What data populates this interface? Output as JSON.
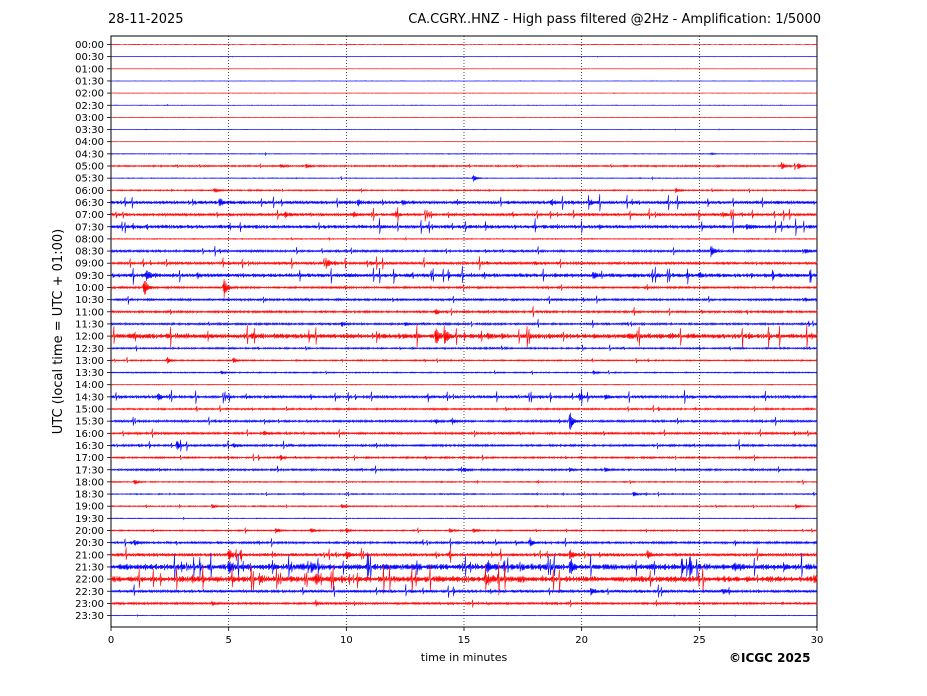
{
  "header": {
    "date": "28-11-2025",
    "title": "CA.CGRY..HNZ - High pass filtered @2Hz - Amplification: 1/5000"
  },
  "copyright": "©ICGC 2025",
  "colors": {
    "even_trace": "#ff0000",
    "odd_trace": "#0000ff",
    "grid": "#000000"
  },
  "chart_data": {
    "type": "line",
    "title": "CA.CGRY..HNZ - High pass filtered @2Hz - Amplification: 1/5000",
    "xlabel": "time in minutes",
    "ylabel": "UTC (local time = UTC + 01:00)",
    "xlim": [
      0,
      30
    ],
    "x_ticks": [
      "0",
      "5",
      "10",
      "15",
      "20",
      "25",
      "30"
    ],
    "x_gridlines": [
      5,
      10,
      15,
      20,
      25
    ],
    "grid": "vertical dotted",
    "rows": [
      "00:00",
      "00:30",
      "01:00",
      "01:30",
      "02:00",
      "02:30",
      "03:00",
      "03:30",
      "04:00",
      "04:30",
      "05:00",
      "05:30",
      "06:00",
      "06:30",
      "07:00",
      "07:30",
      "08:00",
      "08:30",
      "09:00",
      "09:30",
      "10:00",
      "10:30",
      "11:00",
      "11:30",
      "12:00",
      "12:30",
      "13:00",
      "13:30",
      "14:00",
      "14:30",
      "15:00",
      "15:30",
      "16:00",
      "16:30",
      "17:00",
      "17:30",
      "18:00",
      "18:30",
      "19:00",
      "19:30",
      "20:00",
      "20:30",
      "21:00",
      "21:30",
      "22:00",
      "22:30",
      "23:00",
      "23:30"
    ],
    "row_activity": [
      0.02,
      0.02,
      0.02,
      0.02,
      0.02,
      0.04,
      0.02,
      0.02,
      0.02,
      0.06,
      0.14,
      0.06,
      0.12,
      0.3,
      0.25,
      0.32,
      0.08,
      0.2,
      0.25,
      0.35,
      0.18,
      0.2,
      0.2,
      0.18,
      0.45,
      0.15,
      0.12,
      0.1,
      0.05,
      0.25,
      0.15,
      0.2,
      0.2,
      0.2,
      0.15,
      0.18,
      0.1,
      0.1,
      0.1,
      0.06,
      0.12,
      0.2,
      0.3,
      0.55,
      0.55,
      0.25,
      0.2,
      0.04
    ],
    "events": [
      {
        "row": "04:30",
        "minute": 25.5,
        "amp": 0.15
      },
      {
        "row": "05:00",
        "minute": 7.2,
        "amp": 0.3
      },
      {
        "row": "05:00",
        "minute": 8.3,
        "amp": 0.4
      },
      {
        "row": "05:00",
        "minute": 28.5,
        "amp": 0.6
      },
      {
        "row": "05:00",
        "minute": 29.2,
        "amp": 0.6
      },
      {
        "row": "05:30",
        "minute": 15.4,
        "amp": 0.6
      },
      {
        "row": "06:00",
        "minute": 4.4,
        "amp": 0.5
      },
      {
        "row": "06:00",
        "minute": 24.0,
        "amp": 0.4
      },
      {
        "row": "06:30",
        "minute": 4.6,
        "amp": 0.6
      },
      {
        "row": "06:30",
        "minute": 10.5,
        "amp": 0.4
      },
      {
        "row": "06:30",
        "minute": 12.4,
        "amp": 0.4
      },
      {
        "row": "06:30",
        "minute": 18.7,
        "amp": 0.4
      },
      {
        "row": "06:30",
        "minute": 20.4,
        "amp": 0.4
      },
      {
        "row": "07:00",
        "minute": 7.4,
        "amp": 0.45
      },
      {
        "row": "07:00",
        "minute": 10.3,
        "amp": 0.45
      },
      {
        "row": "07:00",
        "minute": 12.1,
        "amp": 0.45
      },
      {
        "row": "07:00",
        "minute": 26.0,
        "amp": 0.4
      },
      {
        "row": "07:30",
        "minute": 27.0,
        "amp": 0.4
      },
      {
        "row": "08:30",
        "minute": 25.5,
        "amp": 0.9
      },
      {
        "row": "08:30",
        "minute": 29.5,
        "amp": 0.4
      },
      {
        "row": "09:00",
        "minute": 9.2,
        "amp": 0.6
      },
      {
        "row": "09:00",
        "minute": 11.0,
        "amp": 0.3
      },
      {
        "row": "09:00",
        "minute": 18.0,
        "amp": 0.3
      },
      {
        "row": "09:30",
        "minute": 1.5,
        "amp": 0.9
      },
      {
        "row": "09:30",
        "minute": 20.5,
        "amp": 0.4
      },
      {
        "row": "09:30",
        "minute": 25.0,
        "amp": 0.4
      },
      {
        "row": "10:00",
        "minute": 1.4,
        "amp": 1.6
      },
      {
        "row": "10:00",
        "minute": 4.8,
        "amp": 1.6
      },
      {
        "row": "10:30",
        "minute": 29.5,
        "amp": 0.3
      },
      {
        "row": "11:00",
        "minute": 13.8,
        "amp": 0.4
      },
      {
        "row": "11:30",
        "minute": 9.8,
        "amp": 0.45
      },
      {
        "row": "11:30",
        "minute": 12.5,
        "amp": 0.35
      },
      {
        "row": "12:00",
        "minute": 13.8,
        "amp": 1.6
      },
      {
        "row": "12:00",
        "minute": 14.2,
        "amp": 1.0
      },
      {
        "row": "12:00",
        "minute": 16.0,
        "amp": 0.5
      },
      {
        "row": "12:00",
        "minute": 22.0,
        "amp": 0.45
      },
      {
        "row": "13:00",
        "minute": 2.4,
        "amp": 0.5
      },
      {
        "row": "13:00",
        "minute": 5.2,
        "amp": 0.45
      },
      {
        "row": "13:30",
        "minute": 4.7,
        "amp": 0.35
      },
      {
        "row": "13:30",
        "minute": 20.5,
        "amp": 0.35
      },
      {
        "row": "14:30",
        "minute": 2.0,
        "amp": 0.6
      },
      {
        "row": "14:30",
        "minute": 19.9,
        "amp": 0.55
      },
      {
        "row": "14:30",
        "minute": 21.0,
        "amp": 0.4
      },
      {
        "row": "15:30",
        "minute": 19.5,
        "amp": 1.6
      },
      {
        "row": "15:30",
        "minute": 13.8,
        "amp": 0.4
      },
      {
        "row": "15:30",
        "minute": 14.5,
        "amp": 0.45
      },
      {
        "row": "16:00",
        "minute": 6.5,
        "amp": 0.35
      },
      {
        "row": "16:30",
        "minute": 2.8,
        "amp": 0.7
      },
      {
        "row": "16:30",
        "minute": 5.2,
        "amp": 0.35
      },
      {
        "row": "17:00",
        "minute": 7.2,
        "amp": 0.45
      },
      {
        "row": "17:30",
        "minute": 15.0,
        "amp": 0.35
      },
      {
        "row": "17:30",
        "minute": 19.5,
        "amp": 0.35
      },
      {
        "row": "17:30",
        "minute": 21.0,
        "amp": 0.4
      },
      {
        "row": "18:00",
        "minute": 1.0,
        "amp": 0.4
      },
      {
        "row": "18:30",
        "minute": 22.2,
        "amp": 0.4
      },
      {
        "row": "19:00",
        "minute": 4.3,
        "amp": 0.4
      },
      {
        "row": "19:00",
        "minute": 9.8,
        "amp": 0.35
      },
      {
        "row": "19:00",
        "minute": 29.1,
        "amp": 0.4
      },
      {
        "row": "20:00",
        "minute": 7.0,
        "amp": 0.45
      },
      {
        "row": "20:00",
        "minute": 8.5,
        "amp": 0.4
      },
      {
        "row": "20:00",
        "minute": 10.0,
        "amp": 0.35
      },
      {
        "row": "20:00",
        "minute": 14.4,
        "amp": 0.4
      },
      {
        "row": "20:00",
        "minute": 15.4,
        "amp": 0.4
      },
      {
        "row": "20:30",
        "minute": 1.0,
        "amp": 0.5
      },
      {
        "row": "20:30",
        "minute": 17.8,
        "amp": 0.7
      },
      {
        "row": "21:00",
        "minute": 5.0,
        "amp": 1.0
      },
      {
        "row": "21:00",
        "minute": 10.0,
        "amp": 0.6
      },
      {
        "row": "21:00",
        "minute": 19.5,
        "amp": 0.8
      },
      {
        "row": "21:00",
        "minute": 22.8,
        "amp": 0.7
      },
      {
        "row": "21:30",
        "minute": 5.0,
        "amp": 1.1
      },
      {
        "row": "21:30",
        "minute": 8.5,
        "amp": 0.9
      },
      {
        "row": "21:30",
        "minute": 16.0,
        "amp": 0.8
      },
      {
        "row": "21:30",
        "minute": 19.5,
        "amp": 1.0
      },
      {
        "row": "21:30",
        "minute": 26.5,
        "amp": 0.6
      },
      {
        "row": "22:00",
        "minute": 6.3,
        "amp": 0.6
      },
      {
        "row": "22:00",
        "minute": 8.7,
        "amp": 0.8
      },
      {
        "row": "22:00",
        "minute": 15.9,
        "amp": 0.7
      },
      {
        "row": "22:00",
        "minute": 29.9,
        "amp": 0.4
      },
      {
        "row": "22:30",
        "minute": 20.4,
        "amp": 0.7
      },
      {
        "row": "22:30",
        "minute": 26.0,
        "amp": 0.4
      },
      {
        "row": "23:00",
        "minute": 4.3,
        "amp": 0.4
      },
      {
        "row": "23:00",
        "minute": 8.7,
        "amp": 0.5
      }
    ]
  }
}
